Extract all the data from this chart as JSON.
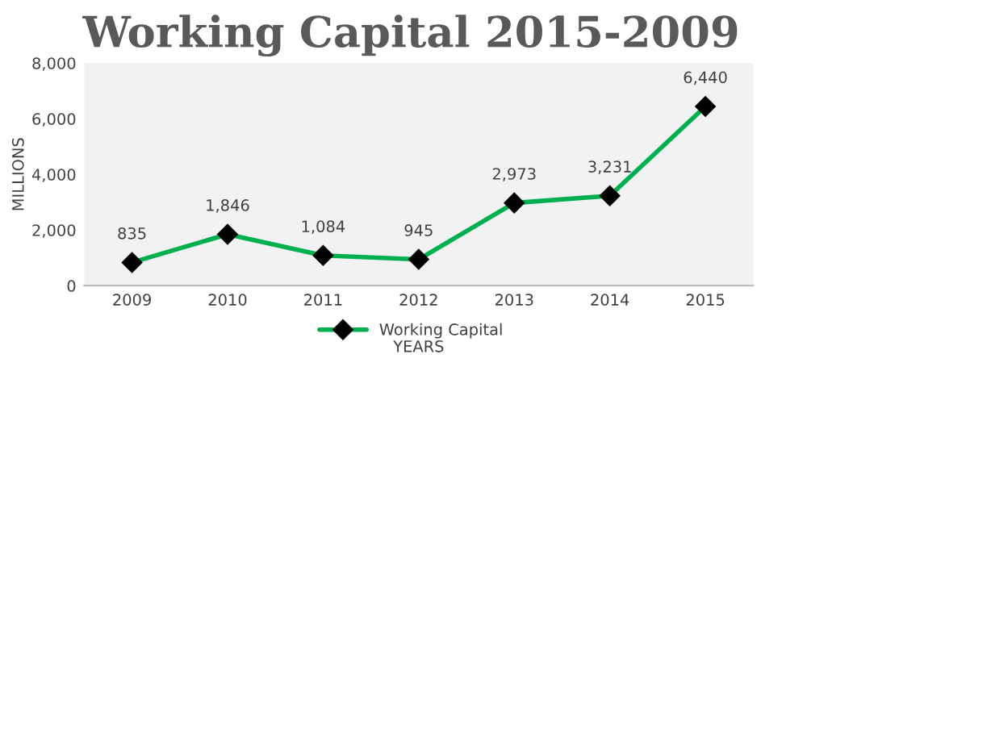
{
  "chart_data": {
    "type": "line",
    "title": "Working Capital 2015-2009",
    "xlabel": "YEARS",
    "ylabel": "MILLIONS",
    "categories": [
      "2009",
      "2010",
      "2011",
      "2012",
      "2013",
      "2014",
      "2015"
    ],
    "series": [
      {
        "name": "Working Capital",
        "color": "#00b050",
        "values": [
          835,
          1846,
          1084,
          945,
          2973,
          3231,
          6440
        ],
        "value_labels": [
          "835",
          "1,846",
          "1,084",
          "945",
          "2,973",
          "3,231",
          "6,440"
        ]
      }
    ],
    "ylim": [
      0,
      8000
    ],
    "yticks": [
      {
        "value": 0,
        "label": "0"
      },
      {
        "value": 2000,
        "label": "2,000"
      },
      {
        "value": 4000,
        "label": "4,000"
      },
      {
        "value": 6000,
        "label": "6,000"
      },
      {
        "value": 8000,
        "label": "8,000"
      }
    ],
    "marker": "diamond",
    "line_style": "solid",
    "legend": "bottom",
    "grid": false
  }
}
